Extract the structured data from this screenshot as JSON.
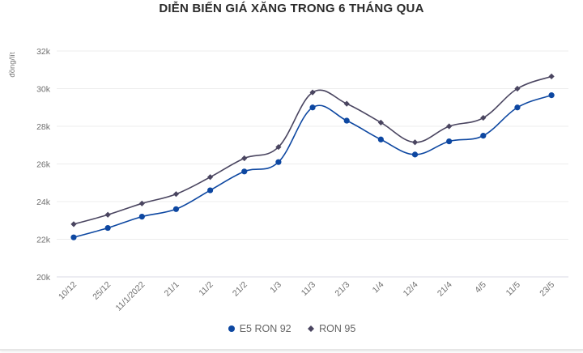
{
  "chart_data": {
    "type": "line",
    "title": "DIỄN BIẾN GIÁ XĂNG TRONG 6 THÁNG QUA",
    "xlabel": "",
    "ylabel": "đồng/lít",
    "ylim": [
      20000,
      32000
    ],
    "yticks": [
      "20k",
      "22k",
      "24k",
      "26k",
      "28k",
      "30k",
      "32k"
    ],
    "ytick_values": [
      20000,
      22000,
      24000,
      26000,
      28000,
      30000,
      32000
    ],
    "grid": true,
    "legend_position": "bottom",
    "categories": [
      "10/12",
      "25/12",
      "11/1/2022",
      "21/1",
      "11/2",
      "21/2",
      "1/3",
      "11/3",
      "21/3",
      "1/4",
      "12/4",
      "21/4",
      "4/5",
      "11/5",
      "23/5"
    ],
    "series": [
      {
        "name": "E5 RON 92",
        "color": "#0d47a1",
        "marker": "circle",
        "values": [
          22100,
          22600,
          23200,
          23600,
          24600,
          25600,
          26100,
          29000,
          28300,
          27300,
          26500,
          27200,
          27500,
          29000,
          29650
        ]
      },
      {
        "name": "RON 95",
        "color": "#4a4560",
        "marker": "diamond",
        "values": [
          22800,
          23300,
          23900,
          24400,
          25300,
          26300,
          26900,
          29800,
          29200,
          28200,
          27150,
          28000,
          28450,
          30000,
          30650
        ]
      }
    ]
  },
  "header": {
    "title": "DIỄN BIẾN GIÁ XĂNG TRONG 6 THÁNG QUA"
  },
  "axis": {
    "y_label": "đồng/lít"
  },
  "legend": {
    "items": [
      {
        "label": "E5 RON 92",
        "color": "#0d47a1",
        "icon": "circle-marker-icon"
      },
      {
        "label": "RON 95",
        "color": "#4a4560",
        "icon": "diamond-marker-icon"
      }
    ]
  }
}
